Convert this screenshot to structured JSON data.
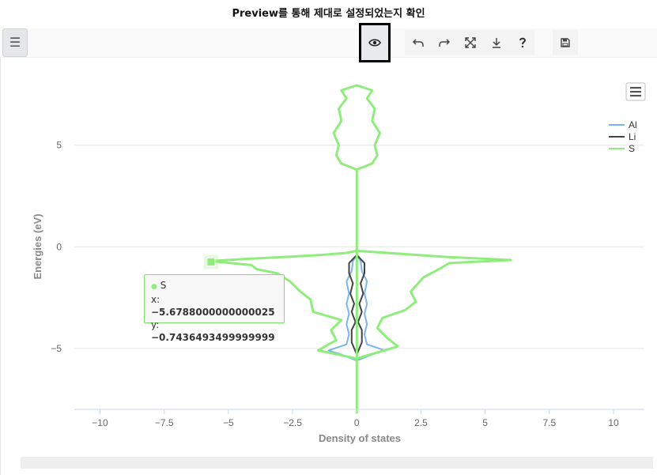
{
  "caption": "Preview를 통해 제대로 설정되었는지 확인",
  "toolbar": {
    "menu_icon": "hamburger-icon",
    "buttons": [
      {
        "name": "preview-button",
        "icon": "eye-icon"
      },
      {
        "name": "undo-button",
        "icon": "undo-icon"
      },
      {
        "name": "redo-button",
        "icon": "redo-icon"
      },
      {
        "name": "fullscreen-button",
        "icon": "expand-icon"
      },
      {
        "name": "download-button",
        "icon": "download-icon"
      },
      {
        "name": "help-button",
        "icon": "question-icon"
      },
      {
        "name": "save-button",
        "icon": "save-icon"
      }
    ]
  },
  "chart_data": {
    "type": "line",
    "xlabel": "Density of states",
    "ylabel": "Energies (eV)",
    "xlim": [
      -11,
      11.2
    ],
    "ylim": [
      -8,
      8.1
    ],
    "x_ticks": [
      -10,
      -7.5,
      -5,
      -2.5,
      0,
      2.5,
      5,
      7.5,
      10
    ],
    "y_ticks": [
      5,
      0,
      -5
    ],
    "x_tick_labels": [
      "−10",
      "−7.5",
      "−5",
      "−2.5",
      "0",
      "2.5",
      "5",
      "7.5",
      "10"
    ],
    "y_tick_labels": [
      "5",
      "0",
      "−5"
    ],
    "grid": true,
    "legend_position": "right",
    "series": [
      {
        "name": "Al",
        "color": "#7cb5ec",
        "points": [
          [
            0,
            -5.6
          ],
          [
            -0.6,
            -5.3
          ],
          [
            -1.1,
            -5.1
          ],
          [
            -0.4,
            -4.8
          ],
          [
            -0.3,
            -4.3
          ],
          [
            -0.4,
            -3.8
          ],
          [
            -0.3,
            -3.3
          ],
          [
            -0.4,
            -2.8
          ],
          [
            -0.3,
            -2.3
          ],
          [
            -0.4,
            -1.7
          ],
          [
            -0.2,
            -1.2
          ],
          [
            -0.15,
            -0.7
          ],
          [
            0,
            -0.4
          ],
          [
            0.15,
            -0.7
          ],
          [
            0.2,
            -1.2
          ],
          [
            0.4,
            -1.7
          ],
          [
            0.3,
            -2.3
          ],
          [
            0.4,
            -2.8
          ],
          [
            0.3,
            -3.3
          ],
          [
            0.4,
            -3.8
          ],
          [
            0.3,
            -4.3
          ],
          [
            0.4,
            -4.8
          ],
          [
            1.1,
            -5.1
          ],
          [
            0.6,
            -5.3
          ],
          [
            0,
            -5.6
          ]
        ]
      },
      {
        "name": "Li",
        "color": "#434348",
        "points": [
          [
            0,
            -5.3
          ],
          [
            -0.2,
            -4.7
          ],
          [
            -0.2,
            -4.1
          ],
          [
            -0.05,
            -3.7
          ],
          [
            -0.2,
            -3.2
          ],
          [
            -0.1,
            -2.8
          ],
          [
            -0.25,
            -2.3
          ],
          [
            -0.15,
            -1.8
          ],
          [
            -0.3,
            -1.3
          ],
          [
            -0.3,
            -0.8
          ],
          [
            0,
            -0.4
          ],
          [
            0.3,
            -0.8
          ],
          [
            0.3,
            -1.3
          ],
          [
            0.15,
            -1.8
          ],
          [
            0.25,
            -2.3
          ],
          [
            0.1,
            -2.8
          ],
          [
            0.2,
            -3.2
          ],
          [
            0.05,
            -3.7
          ],
          [
            0.2,
            -4.1
          ],
          [
            0.2,
            -4.7
          ],
          [
            0,
            -5.3
          ]
        ]
      },
      {
        "name": "S",
        "color": "#90ed7d",
        "points": [
          [
            0,
            -8.2
          ],
          [
            0,
            -5.5
          ],
          [
            -1.5,
            -5.1
          ],
          [
            -1.1,
            -4.8
          ],
          [
            -0.8,
            -4.6
          ],
          [
            -1.0,
            -4.1
          ],
          [
            -0.6,
            -3.6
          ],
          [
            -1.7,
            -3.2
          ],
          [
            -1.8,
            -2.6
          ],
          [
            -2.2,
            -2.2
          ],
          [
            -2.6,
            -1.7
          ],
          [
            -3.1,
            -1.3
          ],
          [
            -3.9,
            -1.1
          ],
          [
            -4.1,
            -0.9
          ],
          [
            -5.3,
            -0.75
          ],
          [
            -5.7,
            -0.7
          ],
          [
            -4.4,
            -0.6
          ],
          [
            -2.8,
            -0.5
          ],
          [
            -1.4,
            -0.4
          ],
          [
            -0.4,
            -0.3
          ],
          [
            0,
            -0.2
          ],
          [
            3.5,
            -0.5
          ],
          [
            6.0,
            -0.65
          ],
          [
            3.6,
            -0.8
          ],
          [
            3.2,
            -1.1
          ],
          [
            2.6,
            -1.5
          ],
          [
            2.1,
            -2.2
          ],
          [
            2.3,
            -2.7
          ],
          [
            1.9,
            -3.1
          ],
          [
            1.0,
            -3.5
          ],
          [
            0.8,
            -4.0
          ],
          [
            1.2,
            -4.5
          ],
          [
            1.6,
            -4.9
          ],
          [
            0.8,
            -5.2
          ],
          [
            0,
            -5.5
          ],
          [
            0,
            3.8
          ],
          [
            -0.6,
            4.1
          ],
          [
            -0.8,
            4.5
          ],
          [
            -0.7,
            5.0
          ],
          [
            -0.9,
            5.6
          ],
          [
            -0.6,
            6.2
          ],
          [
            -0.7,
            6.8
          ],
          [
            -0.4,
            7.3
          ],
          [
            -0.6,
            7.7
          ],
          [
            0,
            7.95
          ],
          [
            0.6,
            7.7
          ],
          [
            0.4,
            7.3
          ],
          [
            0.7,
            6.8
          ],
          [
            0.6,
            6.2
          ],
          [
            0.9,
            5.6
          ],
          [
            0.7,
            5.0
          ],
          [
            0.8,
            4.5
          ],
          [
            0.6,
            4.1
          ],
          [
            0,
            3.8
          ]
        ]
      }
    ]
  },
  "tooltip": {
    "series": "S",
    "x_label": "x: ",
    "x_value": "−5.6788000000000025",
    "y_label": "y: ",
    "y_value": "−0.7436493499999999",
    "hover_x": -5.6788,
    "hover_y": -0.74364935
  }
}
